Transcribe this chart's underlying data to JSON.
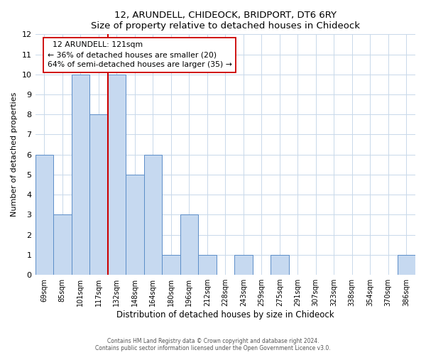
{
  "title": "12, ARUNDELL, CHIDEOCK, BRIDPORT, DT6 6RY",
  "subtitle": "Size of property relative to detached houses in Chideock",
  "xlabel": "Distribution of detached houses by size in Chideock",
  "ylabel": "Number of detached properties",
  "bin_labels": [
    "69sqm",
    "85sqm",
    "101sqm",
    "117sqm",
    "132sqm",
    "148sqm",
    "164sqm",
    "180sqm",
    "196sqm",
    "212sqm",
    "228sqm",
    "243sqm",
    "259sqm",
    "275sqm",
    "291sqm",
    "307sqm",
    "323sqm",
    "338sqm",
    "354sqm",
    "370sqm",
    "386sqm"
  ],
  "bin_counts": [
    6,
    3,
    10,
    8,
    10,
    5,
    6,
    1,
    3,
    1,
    0,
    1,
    0,
    1,
    0,
    0,
    0,
    0,
    0,
    0,
    1
  ],
  "property_label": "12 ARUNDELL: 121sqm",
  "pct_smaller": 36,
  "n_smaller": 20,
  "pct_larger_semi": 64,
  "n_larger_semi": 35,
  "vline_position": 3.5,
  "bar_color": "#c6d9f0",
  "bar_edge_color": "#5b8dc8",
  "vline_color": "#cc0000",
  "annotation_box_edge": "#cc0000",
  "grid_color": "#c8d8ea",
  "footer_line1": "Contains HM Land Registry data © Crown copyright and database right 2024.",
  "footer_line2": "Contains public sector information licensed under the Open Government Licence v3.0.",
  "ylim": [
    0,
    12
  ],
  "num_bins": 21
}
